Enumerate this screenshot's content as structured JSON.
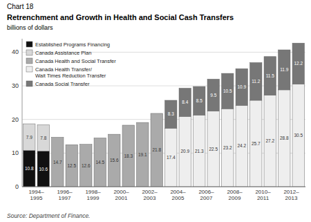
{
  "chart_data": {
    "type": "bar",
    "stacked": true,
    "title": "Retrenchment and Growth in Health and Social Cash Transfers",
    "subtitle": "billions of dollars",
    "annotations": [
      "Chart 18"
    ],
    "source": "Source: Department of Finance.",
    "categories": [
      "1994–\n1995",
      null,
      "1996–\n1997",
      null,
      "1998–\n1999",
      null,
      "2000–\n2001",
      null,
      "2002–\n2003",
      null,
      "2004–\n2005",
      null,
      "2006–\n2007",
      null,
      "2008–\n2009",
      null,
      "2010–\n2011",
      null,
      "2012–\n2013",
      null
    ],
    "series": [
      {
        "name": "Established Programs Financing",
        "color": "#111111",
        "values": [
          10.8,
          10.6,
          0,
          0,
          0,
          0,
          0,
          0,
          0,
          0,
          0,
          0,
          0,
          0,
          0,
          0,
          0,
          0,
          0,
          0
        ]
      },
      {
        "name": "Canada Assistance Plan",
        "color": "#d8d8d8",
        "values": [
          7.9,
          7.8,
          0,
          0,
          0,
          0,
          0,
          0,
          0,
          0,
          0,
          0,
          0,
          0,
          0,
          0,
          0,
          0,
          0,
          0
        ]
      },
      {
        "name": "Canada Health and Social Transfer",
        "color": "#aaaaaa",
        "values": [
          0,
          0,
          14.7,
          12.5,
          12.6,
          14.5,
          15.6,
          18.3,
          19.1,
          21.8,
          0,
          0,
          0,
          0,
          0,
          0,
          0,
          0,
          0,
          0
        ]
      },
      {
        "name": "Canada Health Transfer/\nWait Times Reduction Transfer",
        "color": "#eeeeee",
        "values": [
          0,
          0,
          0,
          0,
          0,
          0,
          0,
          0,
          0,
          0,
          17.4,
          20.9,
          21.3,
          22.5,
          23.2,
          24.2,
          25.7,
          27.2,
          28.8,
          30.5
        ]
      },
      {
        "name": "Canada Social Transfer",
        "color": "#777777",
        "values": [
          0,
          0,
          0,
          0,
          0,
          0,
          0,
          0,
          0,
          0,
          8.3,
          8.4,
          8.5,
          9.5,
          10.5,
          10.9,
          11.2,
          11.5,
          11.9,
          12.2
        ]
      }
    ],
    "ylim": [
      0,
      44
    ],
    "yticks": [
      0,
      10,
      20,
      30,
      40
    ],
    "grid": true,
    "legend": "upper left",
    "data_labels": true
  }
}
